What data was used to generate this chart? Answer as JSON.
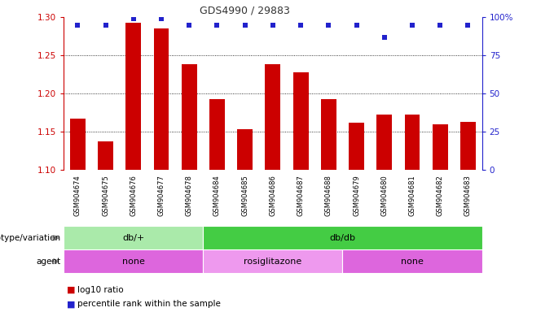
{
  "title": "GDS4990 / 29883",
  "samples": [
    "GSM904674",
    "GSM904675",
    "GSM904676",
    "GSM904677",
    "GSM904678",
    "GSM904684",
    "GSM904685",
    "GSM904686",
    "GSM904687",
    "GSM904688",
    "GSM904679",
    "GSM904680",
    "GSM904681",
    "GSM904682",
    "GSM904683"
  ],
  "log10_ratio": [
    1.167,
    1.137,
    1.293,
    1.285,
    1.238,
    1.193,
    1.153,
    1.238,
    1.228,
    1.193,
    1.162,
    1.173,
    1.173,
    1.16,
    1.163
  ],
  "percentile_rank": [
    95,
    95,
    99,
    99,
    95,
    95,
    95,
    95,
    95,
    95,
    95,
    87,
    95,
    95,
    95
  ],
  "ylim_left": [
    1.1,
    1.3
  ],
  "ylim_right": [
    0,
    100
  ],
  "yticks_left": [
    1.1,
    1.15,
    1.2,
    1.25,
    1.3
  ],
  "yticks_right": [
    0,
    25,
    50,
    75,
    100
  ],
  "gridlines": [
    1.15,
    1.2,
    1.25
  ],
  "bar_color": "#cc0000",
  "dot_color": "#2222cc",
  "genotype_groups": [
    {
      "label": "db/+",
      "start": 0,
      "end": 5,
      "color": "#aaeaaa"
    },
    {
      "label": "db/db",
      "start": 5,
      "end": 15,
      "color": "#44cc44"
    }
  ],
  "agent_groups": [
    {
      "label": "none",
      "start": 0,
      "end": 5,
      "color": "#dd66dd"
    },
    {
      "label": "rosiglitazone",
      "start": 5,
      "end": 10,
      "color": "#ee99ee"
    },
    {
      "label": "none",
      "start": 10,
      "end": 15,
      "color": "#dd66dd"
    }
  ],
  "legend_red_label": "log10 ratio",
  "legend_blue_label": "percentile rank within the sample",
  "label_genotype": "genotype/variation",
  "label_agent": "agent",
  "left_axis_color": "#cc0000",
  "right_axis_color": "#2222cc",
  "title_color": "#333333",
  "tick_bg_color": "#cccccc",
  "bar_width": 0.55
}
